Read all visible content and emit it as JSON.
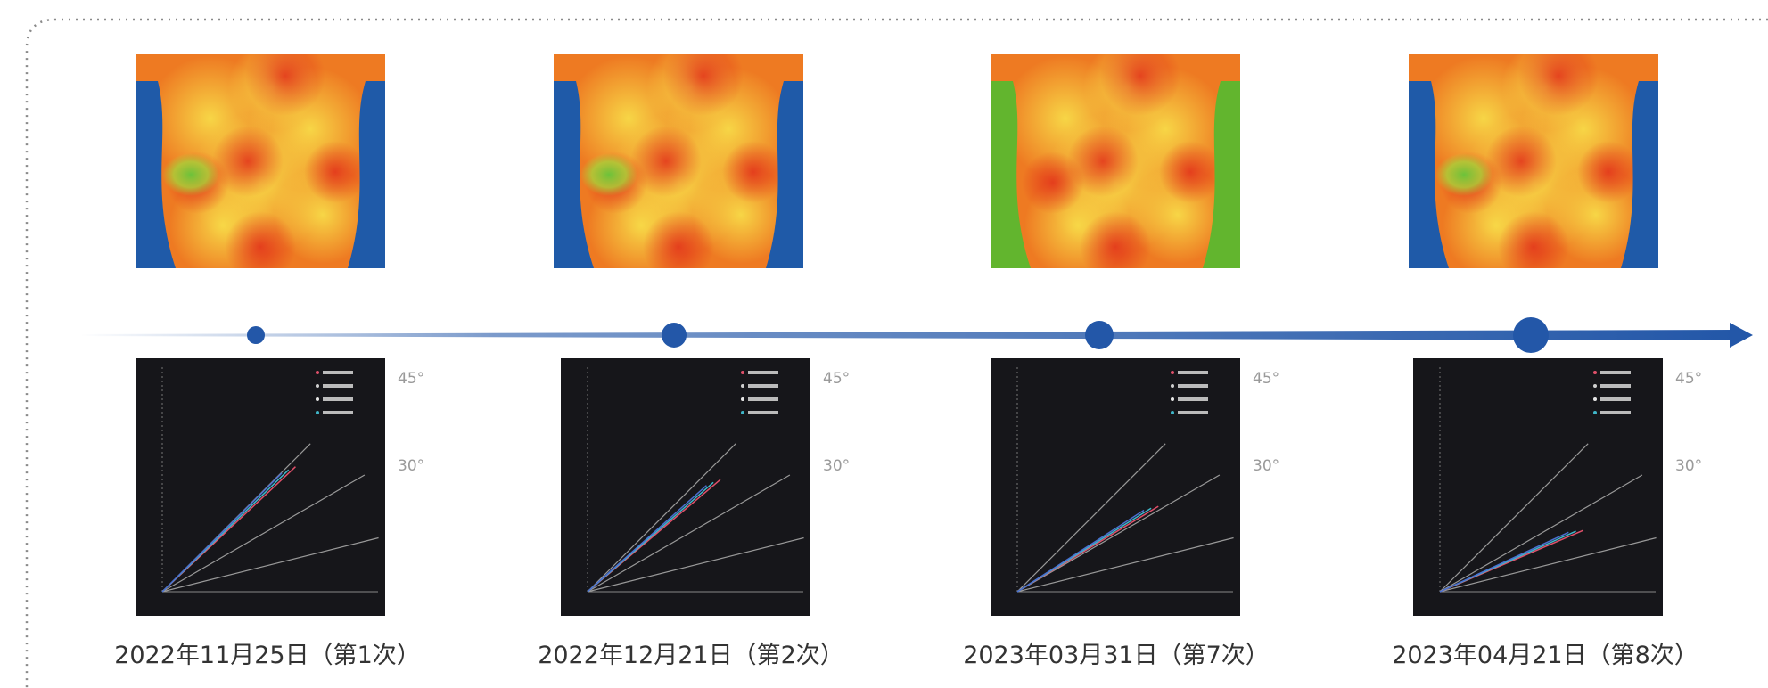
{
  "timeline": {
    "entries": [
      {
        "date": "2022年11月25日（第1次）",
        "angle_labels": [
          "45°",
          "30°"
        ]
      },
      {
        "date": "2022年12月21日（第2次）",
        "angle_labels": [
          "45°",
          "30°"
        ]
      },
      {
        "date": "2023年03月31日（第7次）",
        "angle_labels": [
          "45°",
          "30°"
        ]
      },
      {
        "date": "2023年04月21日（第8次）",
        "angle_labels": [
          "45°",
          "30°"
        ]
      }
    ]
  }
}
